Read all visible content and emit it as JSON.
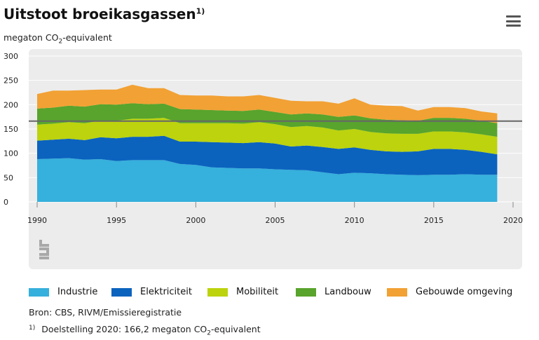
{
  "header": {
    "title": "Uitstoot broeikasgassen",
    "title_footnote": "1)",
    "unit_prefix": "megaton CO",
    "unit_sub": "2",
    "unit_suffix": "-equivalent",
    "menu_icon": "hamburger-menu-icon"
  },
  "watermark_icon": "cbs-logo-icon",
  "source": "Bron: CBS, RIVM/Emissieregistratie",
  "footnote": {
    "marker": "1)",
    "text_prefix": "Doelstelling 2020: 166,2 megaton CO",
    "text_sub": "2",
    "text_suffix": "-equivalent"
  },
  "colors": {
    "plot_background": "#ececec",
    "gridline": "#ffffff",
    "target_line": "#666666"
  },
  "chart_data": {
    "type": "area",
    "stacked": true,
    "title": "Uitstoot broeikasgassen",
    "ylabel": "megaton CO2-equivalent",
    "xlabel": "",
    "xlim": [
      1989.5,
      2020.5
    ],
    "ylim": [
      0,
      300
    ],
    "y_ticks": [
      0,
      50,
      100,
      150,
      200,
      250,
      300
    ],
    "x_ticks": [
      1990,
      1995,
      2000,
      2005,
      2010,
      2015,
      2020
    ],
    "grid": true,
    "legend_position": "bottom",
    "x": [
      1990,
      1991,
      1992,
      1993,
      1994,
      1995,
      1996,
      1997,
      1998,
      1999,
      2000,
      2001,
      2002,
      2003,
      2004,
      2005,
      2006,
      2007,
      2008,
      2009,
      2010,
      2011,
      2012,
      2013,
      2014,
      2015,
      2016,
      2017,
      2018,
      2019
    ],
    "series": [
      {
        "name": "Industrie",
        "color": "#36b0dc",
        "values": [
          88,
          89,
          90,
          87,
          88,
          84,
          86,
          86,
          86,
          78,
          76,
          71,
          70,
          69,
          69,
          67,
          66,
          65,
          61,
          57,
          60,
          59,
          57,
          56,
          55,
          56,
          56,
          57,
          56,
          56
        ]
      },
      {
        "name": "Elektriciteit",
        "color": "#0b63be",
        "values": [
          38,
          39,
          40,
          40,
          45,
          47,
          48,
          48,
          50,
          46,
          48,
          52,
          52,
          52,
          54,
          53,
          48,
          51,
          52,
          52,
          52,
          48,
          47,
          47,
          49,
          53,
          53,
          50,
          47,
          42
        ]
      },
      {
        "name": "Mobiliteit",
        "color": "#bcd30e",
        "values": [
          33,
          33,
          34,
          35,
          34,
          36,
          37,
          37,
          37,
          38,
          38,
          39,
          40,
          40,
          41,
          40,
          40,
          40,
          40,
          38,
          38,
          37,
          37,
          37,
          36,
          36,
          36,
          36,
          36,
          36
        ]
      },
      {
        "name": "Landbouw",
        "color": "#58a42c",
        "values": [
          33,
          33,
          34,
          34,
          34,
          33,
          32,
          30,
          29,
          29,
          28,
          27,
          26,
          26,
          26,
          25,
          26,
          26,
          27,
          28,
          28,
          28,
          28,
          28,
          27,
          28,
          28,
          28,
          28,
          28
        ]
      },
      {
        "name": "Gebouwde omgeving",
        "color": "#f2a134",
        "values": [
          30,
          35,
          31,
          34,
          30,
          31,
          38,
          33,
          32,
          29,
          29,
          30,
          29,
          30,
          30,
          29,
          28,
          25,
          27,
          27,
          35,
          28,
          29,
          29,
          21,
          22,
          22,
          22,
          19,
          20
        ]
      }
    ],
    "target": {
      "label": "Doelstelling 2020",
      "value": 166.2
    }
  }
}
